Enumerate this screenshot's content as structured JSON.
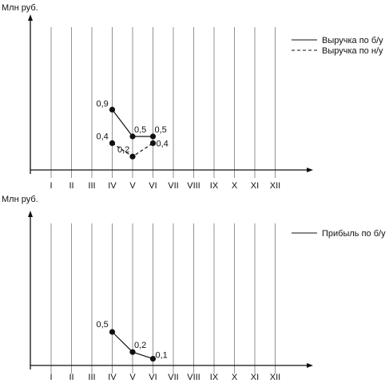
{
  "chart_data": [
    {
      "type": "line",
      "ylabel": "Млн руб.",
      "xlabel": "",
      "categories": [
        "I",
        "II",
        "III",
        "IV",
        "V",
        "VI",
        "VII",
        "VIII",
        "IX",
        "X",
        "XI",
        "XII"
      ],
      "grid": "vertical lines at each month",
      "legend_placement": "top-right",
      "series": [
        {
          "name": "Выручка по б/у",
          "style": "solid",
          "x": [
            "IV",
            "V",
            "VI"
          ],
          "values": [
            0.9,
            0.5,
            0.5
          ],
          "labels": [
            "0,9",
            "0,5",
            "0,5"
          ]
        },
        {
          "name": "Выручка по н/у",
          "style": "dashed",
          "x": [
            "IV",
            "V",
            "VI"
          ],
          "values": [
            0.4,
            0.2,
            0.4
          ],
          "labels": [
            "0,4",
            "0,2",
            "0,4"
          ]
        }
      ]
    },
    {
      "type": "line",
      "ylabel": "Млн руб.",
      "xlabel": "",
      "categories": [
        "I",
        "II",
        "III",
        "IV",
        "V",
        "VI",
        "VII",
        "VIII",
        "IX",
        "X",
        "XI",
        "XII"
      ],
      "grid": "vertical lines at each month",
      "legend_placement": "top-right",
      "series": [
        {
          "name": "Прибыль по б/у",
          "style": "solid",
          "x": [
            "IV",
            "V",
            "VI"
          ],
          "values": [
            0.5,
            0.2,
            0.1
          ],
          "labels": [
            "0,5",
            "0,2",
            "0,1"
          ]
        }
      ]
    }
  ]
}
